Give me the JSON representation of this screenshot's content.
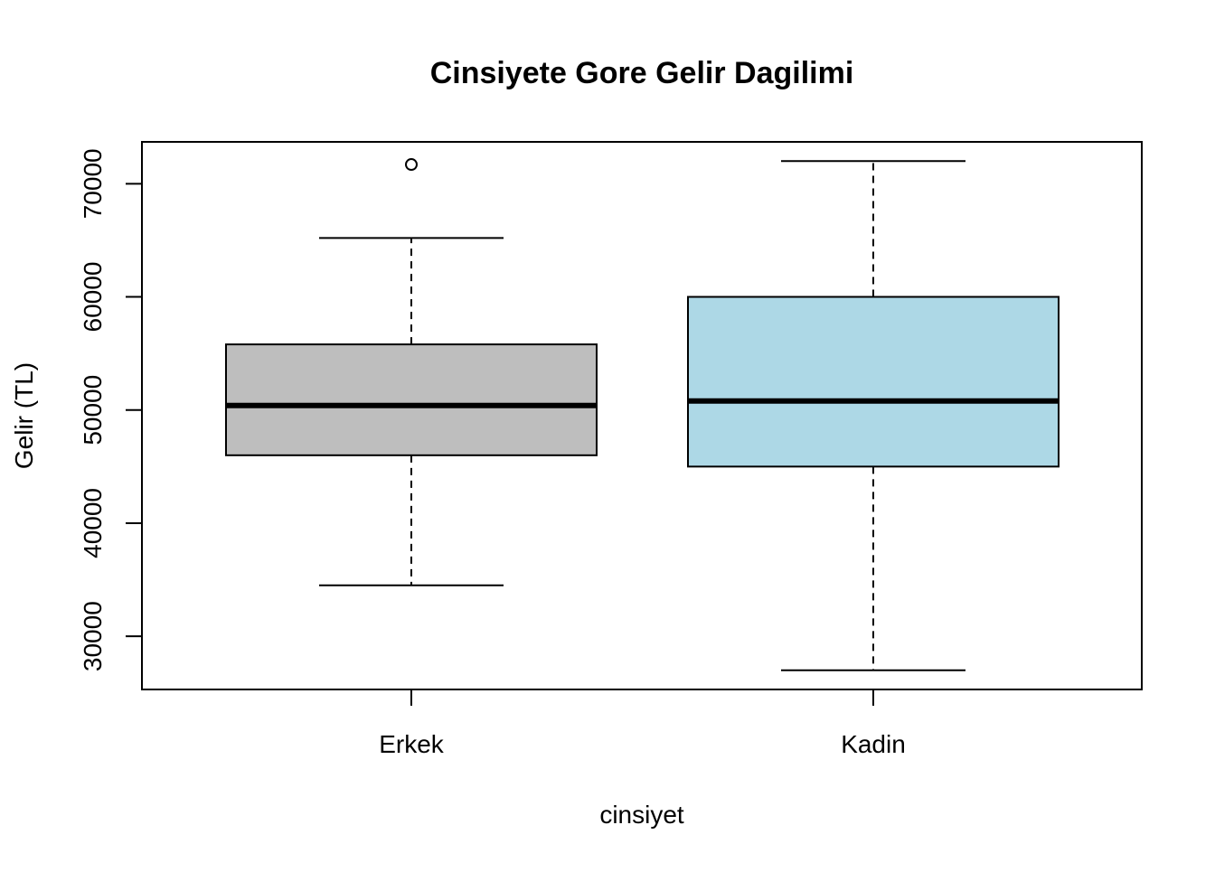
{
  "chart_data": {
    "type": "boxplot",
    "title": "Cinsiyete Gore Gelir Dagilimi",
    "xlabel": "cinsiyet",
    "ylabel": "Gelir (TL)",
    "ylim": [
      25300,
      73700
    ],
    "y_ticks": [
      30000,
      40000,
      50000,
      60000,
      70000
    ],
    "categories": [
      "Erkek",
      "Kadin"
    ],
    "boxes": [
      {
        "category": "Erkek",
        "whisker_low": 34500,
        "q1": 46000,
        "median": 50400,
        "q3": 55800,
        "whisker_high": 65200,
        "outliers": [
          71700
        ],
        "fill": "#bebebe"
      },
      {
        "category": "Kadin",
        "whisker_low": 27000,
        "q1": 45000,
        "median": 50800,
        "q3": 60000,
        "whisker_high": 72000,
        "outliers": [],
        "fill": "#add8e6"
      }
    ],
    "grid": false
  }
}
